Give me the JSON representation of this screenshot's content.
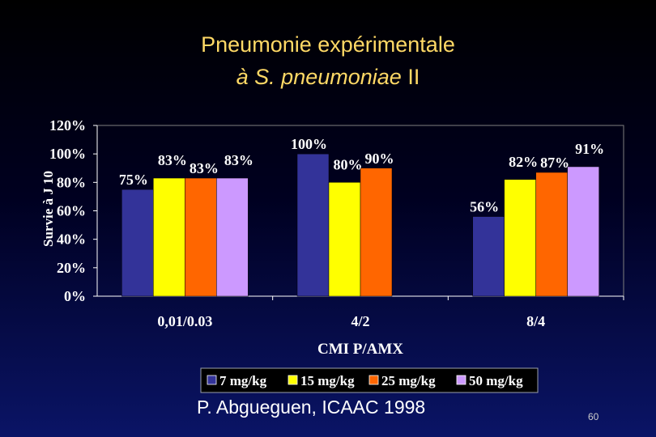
{
  "slide": {
    "title_line1": "Pneumonie expérimentale",
    "title_line2_italic": "à S. pneumoniae",
    "title_line2_roman": " II",
    "footer": "P. Abgueguen, ICAAC 1998",
    "slide_number": "60"
  },
  "chart_data": {
    "type": "bar",
    "title": "",
    "xlabel": "CMI P/AMX",
    "ylabel": "Survie à J 10",
    "ylim": [
      0,
      120
    ],
    "ytick_step": 20,
    "ytick_suffix": "%",
    "grid": false,
    "legend_position": "bottom",
    "categories": [
      "0,01/0.03",
      "4/2",
      "8/4"
    ],
    "series": [
      {
        "name": "7 mg/kg",
        "color": "#333399",
        "values": [
          75,
          100,
          56
        ],
        "labels": [
          "75%",
          "100%",
          "56%"
        ]
      },
      {
        "name": "15 mg/kg",
        "color": "#ffff00",
        "values": [
          83,
          80,
          82
        ],
        "labels": [
          "83%",
          "80%",
          "82%"
        ]
      },
      {
        "name": "25 mg/kg",
        "color": "#ff6600",
        "values": [
          83,
          90,
          87
        ],
        "labels": [
          "83%",
          "90%",
          "87%"
        ]
      },
      {
        "name": "50 mg/kg",
        "color": "#cc99ff",
        "values": [
          83,
          null,
          91
        ],
        "labels": [
          "83%",
          "",
          "91%"
        ]
      }
    ]
  }
}
